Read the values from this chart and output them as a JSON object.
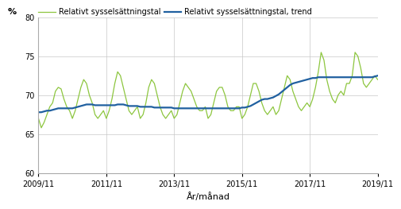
{
  "title": "",
  "xlabel": "År/månad",
  "ylabel": "%",
  "legend1": "Relativt sysselsättningstal",
  "legend2": "Relativt sysselsättningstal, trend",
  "color_green": "#8dc63f",
  "color_blue": "#2060a0",
  "ylim": [
    60,
    80
  ],
  "yticks": [
    60,
    65,
    70,
    75,
    80
  ],
  "xtick_labels": [
    "2009/11",
    "2011/11",
    "2013/11",
    "2015/11",
    "2017/11",
    "2019/11"
  ],
  "xtick_positions": [
    0,
    24,
    48,
    72,
    96,
    120
  ],
  "green_values": [
    67.0,
    65.8,
    66.5,
    67.5,
    68.5,
    69.0,
    70.5,
    71.0,
    70.8,
    69.5,
    68.5,
    68.0,
    67.0,
    68.0,
    69.5,
    71.0,
    72.0,
    71.5,
    70.0,
    69.0,
    67.5,
    67.0,
    67.5,
    68.0,
    67.0,
    68.0,
    69.5,
    71.5,
    73.0,
    72.5,
    71.0,
    69.5,
    68.0,
    67.5,
    68.0,
    68.5,
    67.0,
    67.5,
    69.0,
    71.0,
    72.0,
    71.5,
    70.0,
    68.5,
    67.5,
    67.0,
    67.5,
    68.0,
    67.0,
    67.5,
    69.0,
    70.5,
    71.5,
    71.0,
    70.5,
    69.5,
    68.5,
    68.0,
    68.0,
    68.5,
    67.0,
    67.5,
    69.0,
    70.5,
    71.0,
    71.0,
    70.0,
    68.5,
    68.0,
    68.0,
    68.5,
    68.5,
    67.0,
    67.5,
    68.5,
    70.0,
    71.5,
    71.5,
    70.5,
    69.0,
    68.0,
    67.5,
    68.0,
    68.5,
    67.5,
    68.0,
    69.5,
    71.0,
    72.5,
    72.0,
    70.5,
    69.5,
    68.5,
    68.0,
    68.5,
    69.0,
    68.5,
    69.5,
    71.0,
    73.0,
    75.5,
    74.5,
    72.0,
    70.5,
    69.5,
    69.0,
    70.0,
    70.5,
    70.0,
    71.5,
    71.5,
    72.5,
    75.5,
    75.0,
    73.5,
    71.5,
    71.0,
    71.5,
    72.0,
    72.5,
    72.0
  ],
  "blue_values": [
    67.8,
    67.8,
    67.9,
    68.0,
    68.0,
    68.1,
    68.2,
    68.3,
    68.3,
    68.3,
    68.3,
    68.3,
    68.3,
    68.4,
    68.5,
    68.6,
    68.7,
    68.8,
    68.8,
    68.8,
    68.7,
    68.7,
    68.7,
    68.7,
    68.7,
    68.7,
    68.7,
    68.7,
    68.8,
    68.8,
    68.8,
    68.7,
    68.6,
    68.6,
    68.6,
    68.6,
    68.5,
    68.5,
    68.5,
    68.5,
    68.5,
    68.4,
    68.4,
    68.4,
    68.4,
    68.4,
    68.4,
    68.4,
    68.3,
    68.3,
    68.3,
    68.3,
    68.3,
    68.3,
    68.3,
    68.3,
    68.3,
    68.3,
    68.3,
    68.3,
    68.3,
    68.3,
    68.3,
    68.3,
    68.3,
    68.3,
    68.3,
    68.3,
    68.3,
    68.3,
    68.3,
    68.3,
    68.4,
    68.4,
    68.5,
    68.6,
    68.8,
    69.0,
    69.2,
    69.4,
    69.5,
    69.5,
    69.6,
    69.7,
    69.9,
    70.1,
    70.4,
    70.7,
    71.0,
    71.3,
    71.5,
    71.6,
    71.7,
    71.8,
    71.9,
    72.0,
    72.1,
    72.2,
    72.2,
    72.3,
    72.3,
    72.3,
    72.3,
    72.3,
    72.3,
    72.3,
    72.3,
    72.3,
    72.3,
    72.3,
    72.3,
    72.3,
    72.3,
    72.3,
    72.3,
    72.3,
    72.3,
    72.3,
    72.3,
    72.4,
    72.5
  ]
}
